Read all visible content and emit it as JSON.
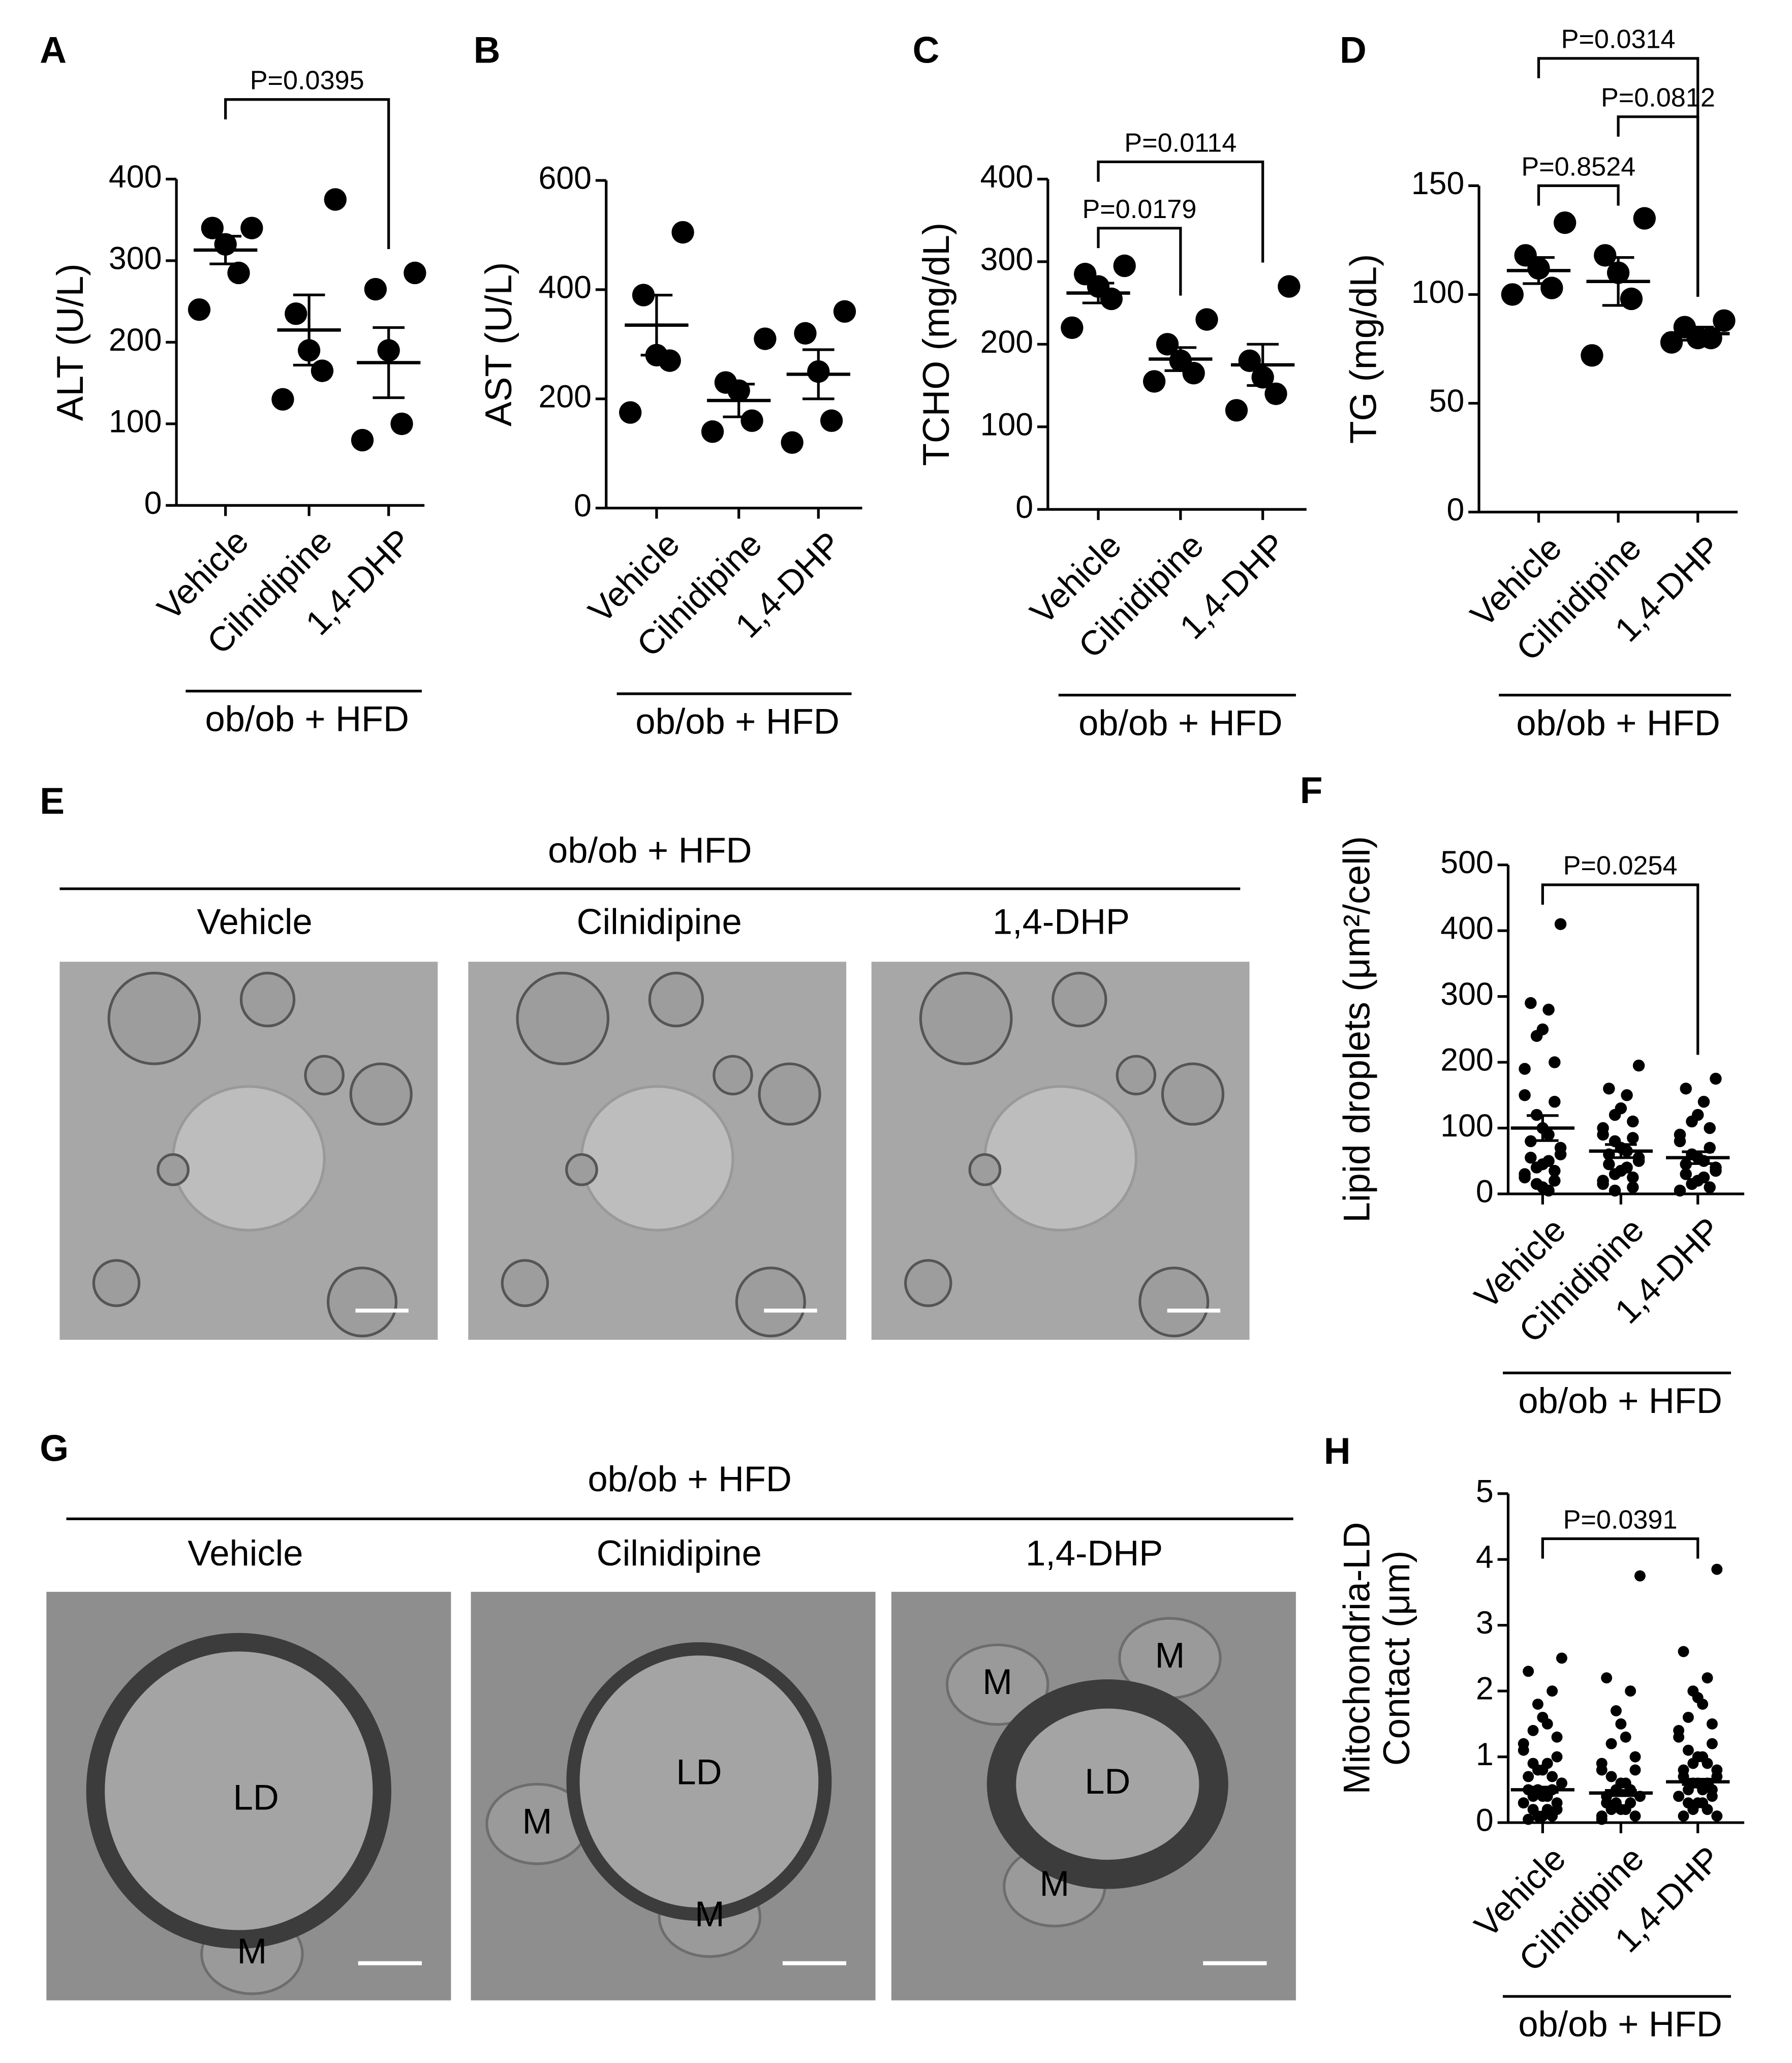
{
  "chart_data": [
    {
      "type": "scatter",
      "panel": "A",
      "ylabel": "ALT (U/L)",
      "categories": [
        "Vehicle",
        "Cilnidipine",
        "1,4-DHP"
      ],
      "group": "ob/ob + HFD",
      "ylim": [
        0,
        400
      ],
      "yticks": [
        0,
        100,
        200,
        300,
        400
      ],
      "points": [
        [
          340,
          340,
          320,
          285,
          240
        ],
        [
          375,
          235,
          190,
          165,
          130
        ],
        [
          285,
          265,
          190,
          100,
          80
        ]
      ],
      "means": [
        313,
        215,
        175
      ],
      "sems": [
        17,
        43,
        43
      ],
      "comparisons": [
        {
          "label": "P=0.0395",
          "pair": [
            "Vehicle",
            "1,4-DHP"
          ]
        }
      ]
    },
    {
      "type": "scatter",
      "panel": "B",
      "ylabel": "AST (U/L)",
      "categories": [
        "Vehicle",
        "Cilnidipine",
        "1,4-DHP"
      ],
      "group": "ob/ob + HFD",
      "ylim": [
        0,
        600
      ],
      "yticks": [
        0,
        200,
        400,
        600
      ],
      "points": [
        [
          505,
          390,
          280,
          270,
          175
        ],
        [
          310,
          230,
          215,
          160,
          140
        ],
        [
          360,
          320,
          250,
          160,
          120
        ]
      ],
      "means": [
        335,
        197,
        245
      ],
      "sems": [
        55,
        30,
        45
      ],
      "comparisons": []
    },
    {
      "type": "scatter",
      "panel": "C",
      "ylabel": "TCHO (mg/dL)",
      "categories": [
        "Vehicle",
        "Cilnidipine",
        "1,4-DHP"
      ],
      "group": "ob/ob + HFD",
      "ylim": [
        0,
        400
      ],
      "yticks": [
        0,
        100,
        200,
        300,
        400
      ],
      "points": [
        [
          295,
          285,
          270,
          255,
          220
        ],
        [
          230,
          200,
          180,
          165,
          155
        ],
        [
          270,
          180,
          160,
          140,
          120
        ]
      ],
      "means": [
        262,
        182,
        175
      ],
      "sems": [
        12,
        14,
        25
      ],
      "comparisons": [
        {
          "label": "P=0.0179",
          "pair": [
            "Vehicle",
            "Cilnidipine"
          ]
        },
        {
          "label": "P=0.0114",
          "pair": [
            "Vehicle",
            "1,4-DHP"
          ]
        }
      ]
    },
    {
      "type": "scatter",
      "panel": "D",
      "ylabel": "TG (mg/dL)",
      "categories": [
        "Vehicle",
        "Cilnidipine",
        "1,4-DHP"
      ],
      "group": "ob/ob + HFD",
      "ylim": [
        0,
        150
      ],
      "yticks": [
        0,
        50,
        100,
        150
      ],
      "points": [
        [
          133,
          118,
          112,
          103,
          100
        ],
        [
          135,
          118,
          110,
          98,
          72
        ],
        [
          88,
          85,
          80,
          80,
          78
        ]
      ],
      "means": [
        111,
        106,
        82
      ],
      "sems": [
        6,
        11,
        3
      ],
      "comparisons": [
        {
          "label": "P=0.8524",
          "pair": [
            "Vehicle",
            "Cilnidipine"
          ]
        },
        {
          "label": "P=0.0812",
          "pair": [
            "Cilnidipine",
            "1,4-DHP"
          ]
        },
        {
          "label": "P=0.0314",
          "pair": [
            "Vehicle",
            "1,4-DHP"
          ]
        }
      ]
    },
    {
      "type": "scatter",
      "panel": "F",
      "ylabel": "Lipid droplets (μm²/cell)",
      "categories": [
        "Vehicle",
        "Cilnidipine",
        "1,4-DHP"
      ],
      "group": "ob/ob + HFD",
      "ylim": [
        0,
        500
      ],
      "yticks": [
        0,
        100,
        200,
        300,
        400,
        500
      ],
      "points": [
        [
          410,
          290,
          280,
          250,
          240,
          200,
          190,
          150,
          140,
          120,
          100,
          90,
          80,
          70,
          60,
          55,
          50,
          45,
          40,
          35,
          30,
          25,
          20,
          15,
          10,
          5
        ],
        [
          195,
          160,
          150,
          130,
          120,
          110,
          100,
          90,
          85,
          80,
          70,
          65,
          60,
          55,
          50,
          45,
          40,
          35,
          30,
          25,
          20,
          15,
          10,
          5
        ],
        [
          175,
          160,
          140,
          120,
          110,
          100,
          90,
          80,
          70,
          60,
          55,
          50,
          45,
          40,
          35,
          30,
          25,
          20,
          15,
          10,
          5
        ]
      ],
      "means": [
        100,
        65,
        55
      ],
      "sems": [
        19,
        10,
        9
      ],
      "comparisons": [
        {
          "label": "P=0.0254",
          "pair": [
            "Vehicle",
            "1,4-DHP"
          ]
        }
      ]
    },
    {
      "type": "scatter",
      "panel": "H",
      "ylabel": [
        "Mitochondria-LD",
        "Contact (μm)"
      ],
      "categories": [
        "Vehicle",
        "Cilnidipine",
        "1,4-DHP"
      ],
      "group": "ob/ob + HFD",
      "ylim": [
        0,
        5
      ],
      "yticks": [
        0,
        1,
        2,
        3,
        4,
        5
      ],
      "points": [
        [
          2.5,
          2.3,
          2.0,
          1.8,
          1.6,
          1.5,
          1.4,
          1.3,
          1.2,
          1.1,
          1.0,
          0.9,
          0.9,
          0.8,
          0.8,
          0.7,
          0.7,
          0.6,
          0.6,
          0.5,
          0.5,
          0.5,
          0.4,
          0.4,
          0.4,
          0.3,
          0.3,
          0.3,
          0.2,
          0.2,
          0.2,
          0.1,
          0.1,
          0.1,
          0.05
        ],
        [
          3.75,
          2.2,
          2.0,
          1.7,
          1.5,
          1.3,
          1.2,
          1.0,
          0.9,
          0.8,
          0.8,
          0.7,
          0.6,
          0.6,
          0.5,
          0.5,
          0.4,
          0.4,
          0.4,
          0.3,
          0.3,
          0.3,
          0.2,
          0.2,
          0.2,
          0.1,
          0.1,
          0.05
        ],
        [
          3.85,
          2.6,
          2.2,
          2.0,
          1.9,
          1.8,
          1.6,
          1.5,
          1.4,
          1.3,
          1.2,
          1.1,
          1.0,
          1.0,
          0.9,
          0.9,
          0.8,
          0.8,
          0.7,
          0.7,
          0.6,
          0.6,
          0.6,
          0.5,
          0.5,
          0.5,
          0.4,
          0.4,
          0.4,
          0.3,
          0.3,
          0.3,
          0.2,
          0.2,
          0.1,
          0.1
        ]
      ],
      "means": [
        0.5,
        0.45,
        0.62
      ],
      "sems": [
        0.04,
        0.04,
        0.04
      ],
      "comparisons": [
        {
          "label": "P=0.0391",
          "pair": [
            "Vehicle",
            "1,4-DHP"
          ]
        }
      ]
    }
  ],
  "images": [
    {
      "panel": "E",
      "group": "ob/ob + HFD",
      "columns": [
        "Vehicle",
        "Cilnidipine",
        "1,4-DHP"
      ]
    },
    {
      "panel": "G",
      "group": "ob/ob + HFD",
      "columns": [
        "Vehicle",
        "Cilnidipine",
        "1,4-DHP"
      ],
      "annotations": [
        [
          "LD",
          "M"
        ],
        [
          "LD",
          "M",
          "M"
        ],
        [
          "LD",
          "M",
          "M",
          "M"
        ]
      ]
    }
  ]
}
